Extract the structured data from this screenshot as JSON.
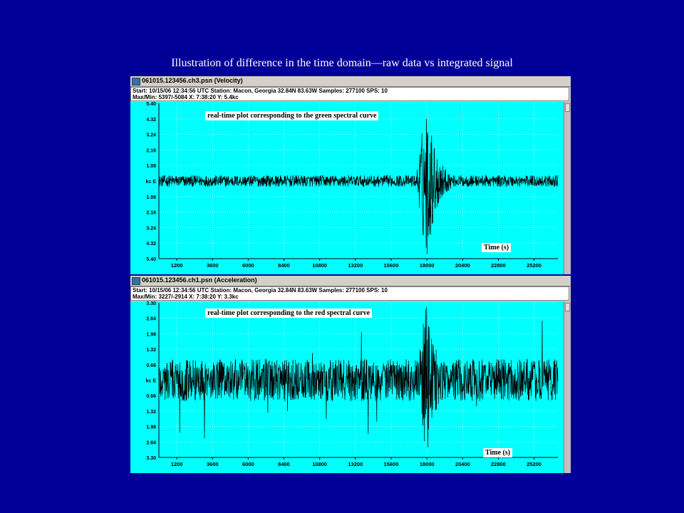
{
  "slide": {
    "title": "Illustration of difference in the time domain—raw data vs integrated signal",
    "background_color": "#000099",
    "plot_background": "#00ffff"
  },
  "windows": [
    {
      "title": "061015.123456.ch3.psn (Velocity)",
      "info_line1": "Start: 10/15/06 12:34:56 UTC Station: Macon, Georgia 32.84N 83.63W Samples: 277100  SPS: 10",
      "info_line2": "Max/Min: 5397/-5084 X: 7:38:20 Y: 5.4kc",
      "annotation": "real-time plot corresponding to the green spectral curve",
      "axis_label_text": "Time (s)",
      "channel_label": "kc    E",
      "icon": "app-window-icon"
    },
    {
      "title": "061015.123456.ch1.psn (Acceleration)",
      "info_line1": "Start: 10/15/06 12:34:56 UTC Station: Macon, Georgia 32.84N 83.63W Samples: 277100  SPS: 10",
      "info_line2": "Max/Min: 3227/-2914 X: 7:38:20 Y: 3.3kc",
      "annotation": "real-time plot corresponding to the red spectral curve",
      "axis_label_text": "Time (s)",
      "channel_label": "kc    E",
      "icon": "app-window-icon"
    }
  ],
  "chart_data": [
    {
      "type": "line",
      "title": "",
      "xlabel": "Time (s)",
      "ylabel": "kc",
      "x_ticks": [
        1200,
        3600,
        6000,
        8400,
        10800,
        13200,
        15600,
        18000,
        20400,
        22800,
        25200
      ],
      "y_tick_labels": [
        "5.40",
        "4.32",
        "3.24",
        "2.16",
        "1.08",
        "kc  E",
        "1.08",
        "2.16",
        "3.24",
        "4.32",
        "5.40"
      ],
      "xlim": [
        0,
        26800
      ],
      "ylim": [
        -5.4,
        5.4
      ],
      "grid": true,
      "series": [
        {
          "trace_color": "#000000",
          "background_noise_amplitude": 0.4,
          "event_peak_time": 18000,
          "event_max": 5.397,
          "event_min": -5.084
        }
      ]
    },
    {
      "type": "line",
      "title": "",
      "xlabel": "Time (s)",
      "ylabel": "kc",
      "x_ticks": [
        1200,
        3600,
        6000,
        8400,
        10800,
        13200,
        15600,
        18000,
        20400,
        22800,
        25200
      ],
      "y_tick_labels": [
        "3.30",
        "2.64",
        "1.98",
        "1.32",
        "0.66",
        "kc  E",
        "0.66",
        "1.32",
        "1.98",
        "2.64",
        "3.30"
      ],
      "xlim": [
        0,
        26800
      ],
      "ylim": [
        -3.3,
        3.3
      ],
      "grid": true,
      "series": [
        {
          "trace_color": "#000000",
          "background_noise_amplitude": 0.9,
          "event_peak_time": 18000,
          "event_max": 3.227,
          "event_min": -2.914
        }
      ]
    }
  ]
}
